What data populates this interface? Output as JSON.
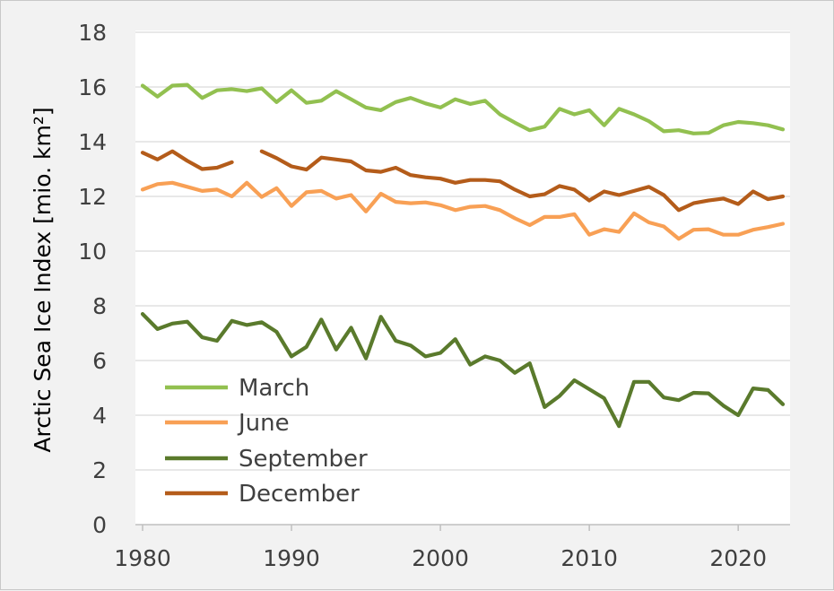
{
  "chart_data": {
    "type": "line",
    "title": "",
    "xlabel": "",
    "ylabel": "Arctic Sea Ice Index [mio. km²]",
    "xlim": [
      1980,
      2023
    ],
    "ylim": [
      0,
      18
    ],
    "xticks": [
      1980,
      1990,
      2000,
      2010,
      2020
    ],
    "yticks": [
      0,
      2,
      4,
      6,
      8,
      10,
      12,
      14,
      16,
      18
    ],
    "grid": "horizontal",
    "legend": "bottom-left",
    "x": [
      1980,
      1981,
      1982,
      1983,
      1984,
      1985,
      1986,
      1987,
      1988,
      1989,
      1990,
      1991,
      1992,
      1993,
      1994,
      1995,
      1996,
      1997,
      1998,
      1999,
      2000,
      2001,
      2002,
      2003,
      2004,
      2005,
      2006,
      2007,
      2008,
      2009,
      2010,
      2011,
      2012,
      2013,
      2014,
      2015,
      2016,
      2017,
      2018,
      2019,
      2020,
      2021,
      2022,
      2023
    ],
    "series": [
      {
        "name": "March",
        "color": "#92c050",
        "values": [
          16.05,
          15.65,
          16.05,
          16.08,
          15.6,
          15.88,
          15.92,
          15.85,
          15.95,
          15.45,
          15.88,
          15.42,
          15.5,
          15.85,
          15.55,
          15.25,
          15.15,
          15.45,
          15.6,
          15.4,
          15.25,
          15.55,
          15.38,
          15.5,
          15.0,
          14.7,
          14.42,
          14.55,
          15.2,
          15.0,
          15.15,
          14.6,
          15.2,
          15.0,
          14.75,
          14.38,
          14.42,
          14.3,
          14.32,
          14.6,
          14.72,
          14.68,
          14.6,
          14.45
        ]
      },
      {
        "name": "June",
        "color": "#f8a055",
        "values": [
          12.25,
          12.45,
          12.5,
          12.35,
          12.2,
          12.25,
          12.0,
          12.5,
          11.98,
          12.3,
          11.65,
          12.15,
          12.2,
          11.92,
          12.05,
          11.45,
          12.1,
          11.8,
          11.75,
          11.78,
          11.68,
          11.5,
          11.62,
          11.65,
          11.5,
          11.2,
          10.95,
          11.25,
          11.25,
          11.35,
          10.6,
          10.8,
          10.7,
          11.38,
          11.05,
          10.9,
          10.45,
          10.78,
          10.8,
          10.6,
          10.6,
          10.78,
          10.88,
          11.0
        ]
      },
      {
        "name": "September",
        "color": "#5a7a2c",
        "values": [
          7.7,
          7.15,
          7.35,
          7.42,
          6.85,
          6.72,
          7.45,
          7.3,
          7.4,
          7.05,
          6.15,
          6.5,
          7.5,
          6.4,
          7.2,
          6.08,
          7.6,
          6.72,
          6.55,
          6.15,
          6.28,
          6.78,
          5.85,
          6.15,
          6.0,
          5.55,
          5.9,
          4.3,
          4.7,
          5.28,
          4.95,
          4.62,
          3.6,
          5.22,
          5.22,
          4.65,
          4.55,
          4.82,
          4.8,
          4.35,
          4.0,
          4.98,
          4.92,
          4.4
        ]
      },
      {
        "name": "December",
        "color": "#b45c1a",
        "values": [
          13.6,
          13.35,
          13.65,
          13.3,
          13.0,
          13.05,
          13.25,
          null,
          13.65,
          13.4,
          13.1,
          12.98,
          13.42,
          13.35,
          13.28,
          12.95,
          12.9,
          13.05,
          12.78,
          12.7,
          12.65,
          12.5,
          12.6,
          12.6,
          12.55,
          12.25,
          12.0,
          12.08,
          12.38,
          12.25,
          11.85,
          12.18,
          12.05,
          12.2,
          12.35,
          12.05,
          11.5,
          11.75,
          11.85,
          11.92,
          11.72,
          12.18,
          11.9,
          12.0
        ]
      }
    ]
  }
}
